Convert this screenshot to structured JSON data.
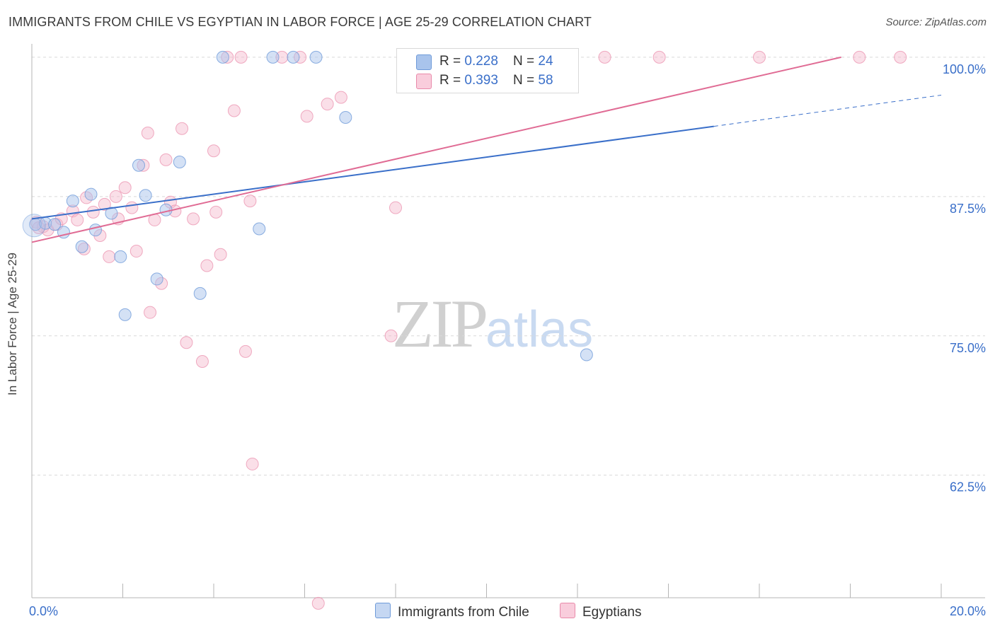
{
  "title": "IMMIGRANTS FROM CHILE VS EGYPTIAN IN LABOR FORCE | AGE 25-29 CORRELATION CHART",
  "source": "Source: ZipAtlas.com",
  "watermark": {
    "zip": "ZIP",
    "atlas": "atlas"
  },
  "legend": {
    "rows": [
      {
        "r_label": "R = ",
        "r_value": "0.228",
        "n_label": "N = ",
        "n_value": "24",
        "color": "#a9c4ec"
      },
      {
        "r_label": "R = ",
        "r_value": "0.393",
        "n_label": "N = ",
        "n_value": "58",
        "color": "#f5b8cc"
      }
    ]
  },
  "bottom_legend": [
    {
      "label": "Immigrants from Chile",
      "color": "#a9c4ec"
    },
    {
      "label": "Egyptians",
      "color": "#f5b8cc"
    }
  ],
  "colors": {
    "blue_fill": "#a9c4ec",
    "blue_stroke": "#6f9bd9",
    "blue_line": "#3a6fc9",
    "pink_fill": "#f5b8cc",
    "pink_stroke": "#e98aaa",
    "pink_line": "#e06b94",
    "grid": "#d9d9d9",
    "axis_text": "#3a6fc9"
  },
  "chart_data": {
    "type": "scatter",
    "title": "IMMIGRANTS FROM CHILE VS EGYPTIAN IN LABOR FORCE | AGE 25-29 CORRELATION CHART",
    "xlabel": "",
    "ylabel": "In Labor Force | Age 25-29",
    "xlim": [
      0,
      20
    ],
    "ylim": [
      51.5,
      101.2
    ],
    "x_tick_labels": [
      "0.0%",
      "20.0%"
    ],
    "y_ticks": [
      62.5,
      75.0,
      87.5,
      100.0
    ],
    "y_tick_labels": [
      "62.5%",
      "75.0%",
      "87.5%",
      "100.0%"
    ],
    "grid": true,
    "legend_position": "top-center",
    "series": [
      {
        "name": "Immigrants from Chile",
        "r": 0.228,
        "n": 24,
        "points": [
          [
            0.08,
            85.0
          ],
          [
            0.3,
            85.1
          ],
          [
            0.5,
            85.0
          ],
          [
            0.7,
            84.3
          ],
          [
            0.9,
            87.1
          ],
          [
            1.1,
            83.0
          ],
          [
            1.3,
            87.7
          ],
          [
            1.4,
            84.5
          ],
          [
            1.75,
            86.0
          ],
          [
            1.95,
            82.1
          ],
          [
            2.05,
            76.9
          ],
          [
            2.35,
            90.3
          ],
          [
            2.5,
            87.6
          ],
          [
            2.75,
            80.1
          ],
          [
            2.95,
            86.3
          ],
          [
            3.25,
            90.6
          ],
          [
            3.7,
            78.8
          ],
          [
            4.2,
            100.0
          ],
          [
            5.0,
            84.6
          ],
          [
            5.3,
            100.0
          ],
          [
            5.75,
            100.0
          ],
          [
            6.25,
            100.0
          ],
          [
            6.9,
            94.6
          ],
          [
            12.2,
            73.3
          ]
        ],
        "trend": {
          "x1": 0,
          "y1": 85.5,
          "x2": 15.0,
          "y2": 93.8,
          "dashed_to_x": 20,
          "dashed_to_y": 96.6
        }
      },
      {
        "name": "Egyptians",
        "r": 0.393,
        "n": 58,
        "points": [
          [
            0.1,
            85.2
          ],
          [
            0.25,
            84.8
          ],
          [
            0.35,
            84.5
          ],
          [
            0.55,
            85.0
          ],
          [
            0.65,
            85.5
          ],
          [
            0.9,
            86.2
          ],
          [
            1.0,
            85.4
          ],
          [
            1.15,
            82.8
          ],
          [
            1.2,
            87.4
          ],
          [
            1.35,
            86.1
          ],
          [
            1.5,
            84.0
          ],
          [
            1.6,
            86.8
          ],
          [
            1.7,
            82.1
          ],
          [
            1.85,
            87.5
          ],
          [
            1.9,
            85.5
          ],
          [
            2.05,
            88.3
          ],
          [
            2.2,
            86.5
          ],
          [
            2.3,
            82.6
          ],
          [
            2.45,
            90.3
          ],
          [
            2.55,
            93.2
          ],
          [
            2.6,
            77.1
          ],
          [
            2.7,
            85.4
          ],
          [
            2.85,
            79.7
          ],
          [
            2.95,
            90.8
          ],
          [
            3.05,
            87.0
          ],
          [
            3.15,
            86.2
          ],
          [
            3.3,
            93.6
          ],
          [
            3.4,
            74.4
          ],
          [
            3.55,
            85.5
          ],
          [
            3.75,
            72.7
          ],
          [
            3.85,
            81.3
          ],
          [
            4.0,
            91.6
          ],
          [
            4.05,
            86.1
          ],
          [
            4.15,
            82.3
          ],
          [
            4.3,
            100.0
          ],
          [
            4.45,
            95.2
          ],
          [
            4.6,
            100.0
          ],
          [
            4.7,
            73.6
          ],
          [
            4.8,
            87.1
          ],
          [
            4.85,
            63.5
          ],
          [
            5.5,
            100.0
          ],
          [
            5.9,
            100.0
          ],
          [
            6.05,
            94.7
          ],
          [
            6.3,
            51.0
          ],
          [
            6.5,
            95.8
          ],
          [
            6.8,
            96.4
          ],
          [
            7.9,
            75.0
          ],
          [
            8.0,
            86.5
          ],
          [
            8.6,
            100.0
          ],
          [
            9.2,
            100.0
          ],
          [
            10.4,
            100.0
          ],
          [
            11.0,
            100.0
          ],
          [
            12.6,
            100.0
          ],
          [
            13.8,
            100.0
          ],
          [
            16.0,
            100.0
          ],
          [
            18.2,
            100.0
          ],
          [
            19.1,
            100.0
          ],
          [
            0.15,
            84.7
          ]
        ],
        "trend": {
          "x1": 0,
          "y1": 83.4,
          "x2": 17.8,
          "y2": 100.0
        }
      }
    ]
  }
}
